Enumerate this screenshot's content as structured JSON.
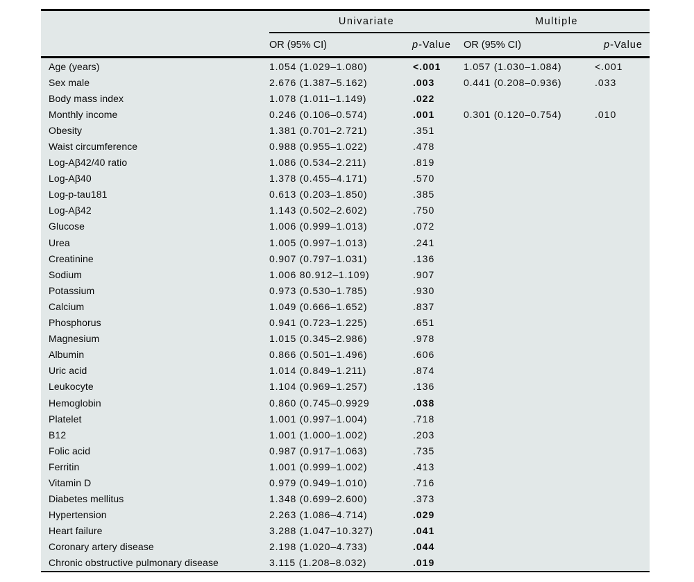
{
  "table": {
    "background_color": "#e2e8e8",
    "rule_color": "#000000",
    "groups": [
      {
        "label": "Univariate"
      },
      {
        "label": "Multiple"
      }
    ],
    "subheaders": {
      "uni_or": "OR (95% CI)",
      "uni_p_italic": "p",
      "uni_p_rest": "-Value",
      "mult_or": "OR (95% CI)",
      "mult_p_italic": "p",
      "mult_p_rest": "-Value"
    },
    "rows": [
      {
        "label": "Age (years)",
        "uni_or": "1.054 (1.029–1.080)",
        "uni_p": "<.001",
        "uni_p_bold": true,
        "mult_or": "1.057 (1.030–1.084)",
        "mult_p": "<.001",
        "mult_p_bold": false
      },
      {
        "label": "Sex male",
        "uni_or": "2.676 (1.387–5.162)",
        "uni_p": ".003",
        "uni_p_bold": true,
        "mult_or": "0.441 (0.208–0.936)",
        "mult_p": ".033",
        "mult_p_bold": false
      },
      {
        "label": "Body mass index",
        "uni_or": "1.078 (1.011–1.149)",
        "uni_p": ".022",
        "uni_p_bold": true
      },
      {
        "label": "Monthly income",
        "uni_or": "0.246 (0.106–0.574)",
        "uni_p": ".001",
        "uni_p_bold": true,
        "mult_or": "0.301 (0.120–0.754)",
        "mult_p": ".010",
        "mult_p_bold": false
      },
      {
        "label": "Obesity",
        "uni_or": "1.381 (0.701–2.721)",
        "uni_p": ".351",
        "uni_p_bold": false
      },
      {
        "label": "Waist circumference",
        "uni_or": "0.988 (0.955–1.022)",
        "uni_p": ".478",
        "uni_p_bold": false
      },
      {
        "label": "Log-Aβ42/40 ratio",
        "uni_or": "1.086 (0.534–2.211)",
        "uni_p": ".819",
        "uni_p_bold": false
      },
      {
        "label": "Log-Aβ40",
        "uni_or": "1.378 (0.455–4.171)",
        "uni_p": ".570",
        "uni_p_bold": false
      },
      {
        "label": "Log-p-tau181",
        "uni_or": "0.613 (0.203–1.850)",
        "uni_p": ".385",
        "uni_p_bold": false
      },
      {
        "label": "Log-Aβ42",
        "uni_or": "1.143 (0.502–2.602)",
        "uni_p": ".750",
        "uni_p_bold": false
      },
      {
        "label": "Glucose",
        "uni_or": "1.006 (0.999–1.013)",
        "uni_p": ".072",
        "uni_p_bold": false
      },
      {
        "label": "Urea",
        "uni_or": "1.005 (0.997–1.013)",
        "uni_p": ".241",
        "uni_p_bold": false
      },
      {
        "label": "Creatinine",
        "uni_or": "0.907 (0.797–1.031)",
        "uni_p": ".136",
        "uni_p_bold": false
      },
      {
        "label": "Sodium",
        "uni_or": "1.006 80.912–1.109)",
        "uni_p": ".907",
        "uni_p_bold": false
      },
      {
        "label": "Potassium",
        "uni_or": "0.973 (0.530–1.785)",
        "uni_p": ".930",
        "uni_p_bold": false
      },
      {
        "label": "Calcium",
        "uni_or": "1.049 (0.666–1.652)",
        "uni_p": ".837",
        "uni_p_bold": false
      },
      {
        "label": "Phosphorus",
        "uni_or": "0.941 (0.723–1.225)",
        "uni_p": ".651",
        "uni_p_bold": false
      },
      {
        "label": "Magnesium",
        "uni_or": "1.015 (0.345–2.986)",
        "uni_p": ".978",
        "uni_p_bold": false
      },
      {
        "label": "Albumin",
        "uni_or": "0.866 (0.501–1.496)",
        "uni_p": ".606",
        "uni_p_bold": false
      },
      {
        "label": "Uric acid",
        "uni_or": "1.014 (0.849–1.211)",
        "uni_p": ".874",
        "uni_p_bold": false
      },
      {
        "label": "Leukocyte",
        "uni_or": "1.104 (0.969–1.257)",
        "uni_p": ".136",
        "uni_p_bold": false
      },
      {
        "label": "Hemoglobin",
        "uni_or": "0.860 (0.745–0.9929",
        "uni_p": ".038",
        "uni_p_bold": true
      },
      {
        "label": "Platelet",
        "uni_or": "1.001 (0.997–1.004)",
        "uni_p": ".718",
        "uni_p_bold": false
      },
      {
        "label": "B12",
        "uni_or": "1.001 (1.000–1.002)",
        "uni_p": ".203",
        "uni_p_bold": false
      },
      {
        "label": "Folic acid",
        "uni_or": "0.987 (0.917–1.063)",
        "uni_p": ".735",
        "uni_p_bold": false
      },
      {
        "label": "Ferritin",
        "uni_or": "1.001 (0.999–1.002)",
        "uni_p": ".413",
        "uni_p_bold": false
      },
      {
        "label": "Vitamin D",
        "uni_or": "0.979 (0.949–1.010)",
        "uni_p": ".716",
        "uni_p_bold": false
      },
      {
        "label": "Diabetes mellitus",
        "uni_or": "1.348 (0.699–2.600)",
        "uni_p": ".373",
        "uni_p_bold": false
      },
      {
        "label": "Hypertension",
        "uni_or": "2.263 (1.086–4.714)",
        "uni_p": ".029",
        "uni_p_bold": true
      },
      {
        "label": "Heart failure",
        "uni_or": "3.288 (1.047–10.327)",
        "uni_p": ".041",
        "uni_p_bold": true
      },
      {
        "label": "Coronary artery disease",
        "uni_or": "2.198 (1.020–4.733)",
        "uni_p": ".044",
        "uni_p_bold": true
      },
      {
        "label": "Chronic obstructive pulmonary disease",
        "uni_or": "3.115 (1.208–8.032)",
        "uni_p": ".019",
        "uni_p_bold": true
      }
    ]
  }
}
